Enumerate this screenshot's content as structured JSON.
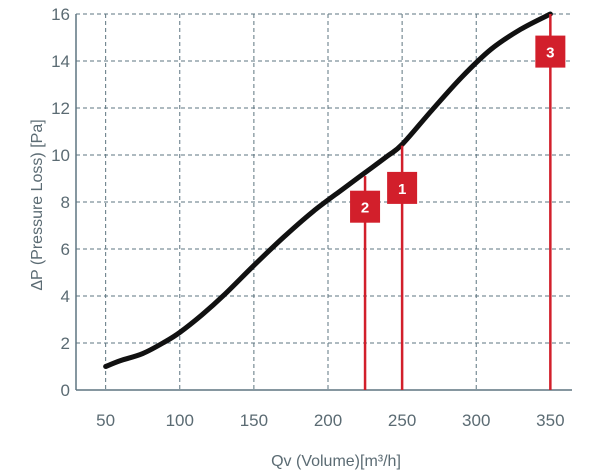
{
  "chart_data": {
    "type": "line",
    "xlabel": "Qv (Volume)[m³/h]",
    "ylabel": "ΔP (Pressure Loss) [Pa]",
    "xlim": [
      30,
      370
    ],
    "ylim": [
      0,
      16
    ],
    "x_ticks": [
      50,
      100,
      150,
      200,
      250,
      300,
      350
    ],
    "y_ticks": [
      0,
      2,
      4,
      6,
      8,
      10,
      12,
      14,
      16
    ],
    "grid": true,
    "series": [
      {
        "x": [
          50,
          60,
          75,
          90,
          100,
          115,
          130,
          150,
          170,
          190,
          210,
          225,
          240,
          250,
          270,
          290,
          310,
          330,
          350
        ],
        "y": [
          1.0,
          1.25,
          1.55,
          2.05,
          2.45,
          3.2,
          4.05,
          5.3,
          6.5,
          7.6,
          8.55,
          9.25,
          9.95,
          10.45,
          11.9,
          13.3,
          14.5,
          15.35,
          16.0
        ]
      }
    ],
    "markers": [
      {
        "label": "1",
        "x": 250,
        "y": 10.4,
        "box_y": 8.6
      },
      {
        "label": "2",
        "x": 225,
        "y": 9.1,
        "box_y": 7.8
      },
      {
        "label": "3",
        "x": 350,
        "y": 16.0,
        "box_y": 14.4
      }
    ],
    "colors": {
      "line": "#111111",
      "grid": "#5e7580",
      "axis": "#5e7580",
      "marker": "#d21f2b",
      "text": "#5b6b73"
    }
  }
}
